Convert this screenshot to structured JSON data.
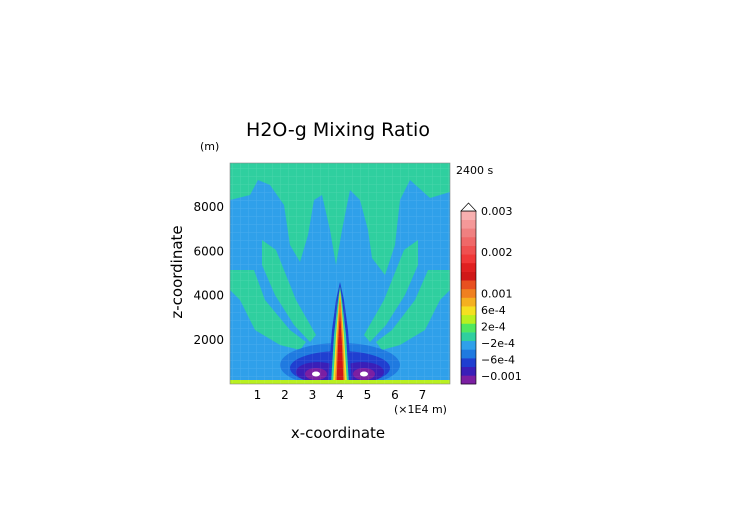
{
  "chart_data": {
    "type": "heatmap",
    "title": "H2O-g Mixing Ratio",
    "time_label": "2400 s",
    "xlabel": "x-coordinate",
    "ylabel": "z-coordinate",
    "x_unit": "(×1E4 m)",
    "y_unit": "(m)",
    "xlim": [
      0,
      8
    ],
    "ylim": [
      0,
      10000
    ],
    "x_ticks": [
      1,
      2,
      3,
      4,
      5,
      6,
      7
    ],
    "y_ticks": [
      2000,
      4000,
      6000,
      8000
    ],
    "colorbar": {
      "extend": "max",
      "labels": [
        {
          "text": "0.003",
          "value": 0.003
        },
        {
          "text": "0.002",
          "value": 0.002
        },
        {
          "text": "0.001",
          "value": 0.001
        },
        {
          "text": "6e-4",
          "value": 0.0006
        },
        {
          "text": "2e-4",
          "value": 0.0002
        },
        {
          "text": "−2e-4",
          "value": -0.0002
        },
        {
          "text": "−6e-4",
          "value": -0.0006
        },
        {
          "text": "−0.001",
          "value": -0.001
        }
      ],
      "colors": [
        "#7b1fa2",
        "#3a1fb8",
        "#1f3fd0",
        "#1f7ae0",
        "#2fa0ea",
        "#2fcf9f",
        "#4fe860",
        "#b8f020",
        "#f5e020",
        "#f5b020",
        "#f08020",
        "#e85020",
        "#d01818",
        "#e02020",
        "#f03838",
        "#f05050",
        "#f06868",
        "#f08080",
        "#f59898",
        "#f8b0b0"
      ]
    },
    "colors": {
      "background_field": "#2fa0ea",
      "band": "#2fcf9f",
      "plume_core": "#d01818",
      "low_values": "#3a1fb8",
      "bottom_strip": "#b8f020"
    }
  }
}
